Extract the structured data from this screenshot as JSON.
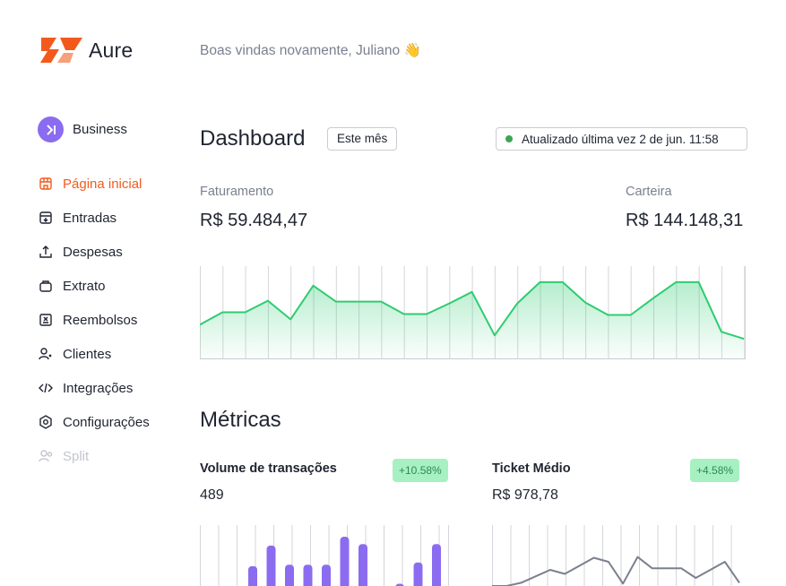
{
  "app": {
    "name": "Aure"
  },
  "header": {
    "welcome": "Boas vindas novamente, Juliano 👋"
  },
  "workspace": {
    "name": "Business"
  },
  "sidebar": {
    "items": [
      {
        "label": "Página inicial",
        "icon": "store-icon",
        "state": "active"
      },
      {
        "label": "Entradas",
        "icon": "inbox-download-icon",
        "state": "normal"
      },
      {
        "label": "Despesas",
        "icon": "upload-arrow-icon",
        "state": "normal"
      },
      {
        "label": "Extrato",
        "icon": "bag-icon",
        "state": "normal"
      },
      {
        "label": "Reembolsos",
        "icon": "receipt-icon",
        "state": "normal"
      },
      {
        "label": "Clientes",
        "icon": "users-icon",
        "state": "normal"
      },
      {
        "label": "Integrações",
        "icon": "code-icon",
        "state": "normal"
      },
      {
        "label": "Configurações",
        "icon": "hexagon-gear-icon",
        "state": "normal"
      },
      {
        "label": "Split",
        "icon": "users-split-icon",
        "state": "disabled"
      }
    ]
  },
  "dashboard": {
    "title": "Dashboard",
    "period": "Este mês",
    "updated": "Atualizado última vez 2 de jun. 11:58",
    "faturamento": {
      "label": "Faturamento",
      "value": "R$ 59.484,47"
    },
    "carteira": {
      "label": "Carteira",
      "value": "R$ 144.148,31"
    }
  },
  "metrics": {
    "title": "Métricas",
    "volume": {
      "label": "Volume de transações",
      "value": "489",
      "change": "+10.58%"
    },
    "ticket": {
      "label": "Ticket Médio",
      "value": "R$ 978,78",
      "change": "+4.58%"
    }
  },
  "colors": {
    "accent": "#f25a1c",
    "line_green": "#2ecc71",
    "bar_purple": "#8b6cf0",
    "line_gray": "#7a808c",
    "badge_bg": "#a7f0c2",
    "badge_text": "#2d8a52"
  },
  "chart_data": [
    {
      "type": "area",
      "values": [
        38,
        52,
        52,
        65,
        44,
        82,
        64,
        64,
        64,
        50,
        50,
        62,
        75,
        26,
        62,
        86,
        86,
        63,
        49,
        49,
        68,
        86,
        86,
        30,
        22
      ],
      "ylim": [
        0,
        100
      ]
    },
    {
      "type": "bar",
      "values": [
        0,
        0,
        27,
        55,
        29,
        29,
        29,
        67,
        57,
        0,
        3,
        32,
        57,
        57
      ],
      "ylim": [
        0,
        100
      ]
    },
    {
      "type": "line",
      "values": [
        0,
        0,
        4,
        12,
        20,
        15,
        25,
        35,
        30,
        3,
        36,
        22,
        22,
        22,
        10,
        20,
        30,
        4
      ],
      "ylim": [
        -20,
        50
      ]
    }
  ]
}
